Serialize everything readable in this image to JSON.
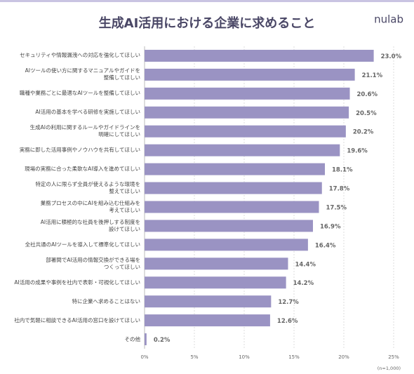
{
  "brand": "nulab",
  "chart_data": {
    "type": "bar",
    "orientation": "horizontal",
    "title": "生成AI活用における企業に求めること",
    "note": "(n=1,000)",
    "categories": [
      "セキュリティや情報漏洩への対応を強化してほしい",
      "AIツールの使い方に関するマニュアルやガイドを\n整備してほしい",
      "職種や業務ごとに最適なAIツールを整備してほしい",
      "AI活用の基本を学べる研修を実施してほしい",
      "生成AIの利用に関するルールやガイドラインを\n明確にしてほしい",
      "実務に即した活用事例やノウハウを共有してほしい",
      "現場の実務に合った柔軟なAI導入を進めてほしい",
      "特定の人に限らず全員が使えるような環境を\n整えてほしい",
      "業務プロセスの中にAIを組み込む仕組みを\n考えてほしい",
      "AI活用に積極的な社員を後押しする制度を\n設けてほしい",
      "全社共通のAIツールを導入して標準化してほしい",
      "部署間でAI活用の情報交換ができる場を\nつくってほしい",
      "AI活用の成果や事例を社内で表彰・可視化してほしい",
      "特に企業へ求めることはない",
      "社内で気軽に相談できるAI活用の窓口を設けてほしい",
      "その他"
    ],
    "values": [
      23.0,
      21.1,
      20.6,
      20.5,
      20.2,
      19.6,
      18.1,
      17.8,
      17.5,
      16.9,
      16.4,
      14.4,
      14.2,
      12.7,
      12.6,
      0.2
    ],
    "value_labels": [
      "23.0%",
      "21.1%",
      "20.6%",
      "20.5%",
      "20.2%",
      "19.6%",
      "18.1%",
      "17.8%",
      "17.5%",
      "16.9%",
      "16.4%",
      "14.4%",
      "14.2%",
      "12.7%",
      "12.6%",
      "0.2%"
    ],
    "color": "#9a93c3",
    "xlim": [
      0,
      25
    ],
    "xticks": [
      {
        "value": 0,
        "label": "0%"
      },
      {
        "value": 5,
        "label": "5%"
      },
      {
        "value": 10,
        "label": "10%"
      },
      {
        "value": 15,
        "label": "15%"
      },
      {
        "value": 20,
        "label": "20%"
      },
      {
        "value": 25,
        "label": "25%"
      }
    ],
    "grid": true
  }
}
